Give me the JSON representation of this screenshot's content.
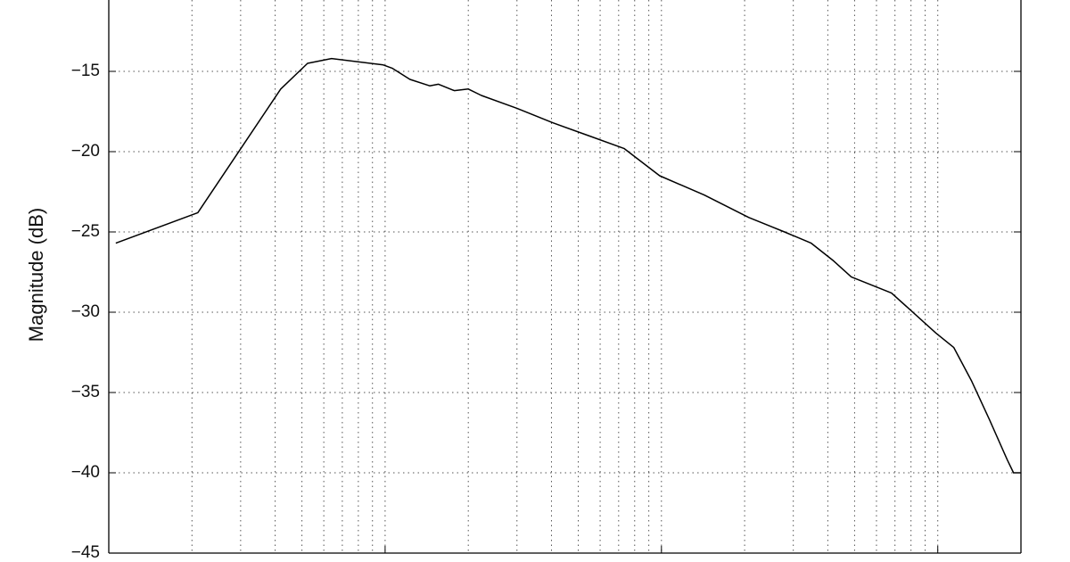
{
  "chart_data": {
    "type": "line",
    "y_label": "Magnitude (dB)",
    "x": [
      10.6,
      21,
      41.9,
      52.4,
      64,
      98.5,
      106,
      123,
      145,
      156,
      178,
      200,
      223,
      300,
      404,
      544,
      732,
      985,
      1428,
      2071,
      2788,
      3483,
      4195,
      4865,
      6797,
      9852,
      11430,
      13270,
      15390,
      17850,
      18800,
      20000
    ],
    "series": [
      {
        "color": "#000000",
        "values": [
          -25.7,
          -23.8,
          -16.1,
          -14.5,
          -14.2,
          -14.6,
          -14.8,
          -15.5,
          -15.9,
          -15.8,
          -16.2,
          -16.1,
          -16.5,
          -17.3,
          -18.2,
          -19.0,
          -19.8,
          -21.5,
          -22.7,
          -24.1,
          -25.0,
          -25.7,
          -26.8,
          -27.8,
          -28.8,
          -31.3,
          -32.2,
          -34.3,
          -36.7,
          -39.2,
          -40,
          -40
        ]
      }
    ],
    "xlim": [
      10,
      20000
    ],
    "xscale": "log",
    "xticks": [
      10,
      100,
      1000,
      10000
    ],
    "ylim": [
      -45,
      -10
    ],
    "yticks": [
      {
        "value": -45,
        "label": "−45"
      },
      {
        "value": -40,
        "label": "−40"
      },
      {
        "value": -35,
        "label": "−35"
      },
      {
        "value": -30,
        "label": "−30"
      },
      {
        "value": -25,
        "label": "−25"
      },
      {
        "value": -20,
        "label": "−20"
      },
      {
        "value": -15,
        "label": "−15"
      }
    ],
    "grid": true
  }
}
